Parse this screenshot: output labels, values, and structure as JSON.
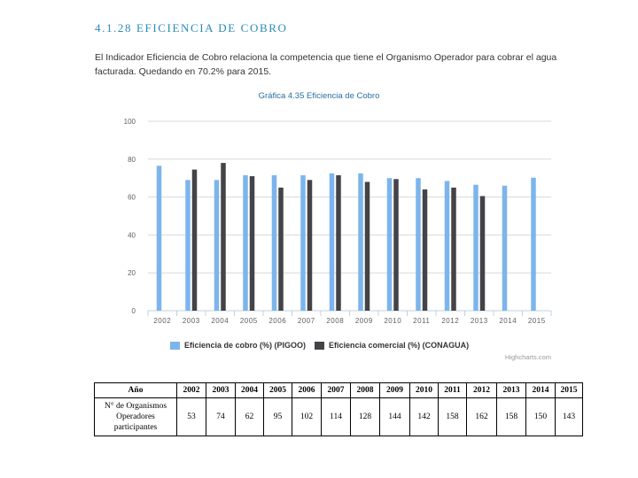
{
  "section": {
    "title": "4.1.28 EFICIENCIA DE COBRO"
  },
  "intro": {
    "text": "El Indicador Eficiencia de Cobro relaciona la competencia que tiene el Organismo Operador para cobrar el agua facturada. Quedando en 70.2% para 2015."
  },
  "chart_title": "Gráfica 4.35 Eficiencia de Cobro",
  "chart_data": {
    "type": "bar",
    "title": "Gráfica 4.35 Eficiencia de Cobro",
    "categories": [
      "2002",
      "2003",
      "2004",
      "2005",
      "2006",
      "2007",
      "2008",
      "2009",
      "2010",
      "2011",
      "2012",
      "2013",
      "2014",
      "2015"
    ],
    "series": [
      {
        "name": "Eficiencia de cobro (%) (PIGOO)",
        "color": "#7cb5ec",
        "values": [
          76.5,
          69,
          69,
          71.5,
          71.5,
          71.5,
          72.5,
          72.5,
          70,
          70,
          68.5,
          66.5,
          66,
          70.2
        ]
      },
      {
        "name": "Eficiencia comercial (%) (CONAGUA)",
        "color": "#434348",
        "values": [
          null,
          74.5,
          78,
          71,
          65,
          69,
          71.5,
          68,
          69.5,
          64,
          65,
          60.5,
          null,
          null
        ]
      }
    ],
    "yticks": [
      0,
      20,
      40,
      60,
      80,
      100
    ],
    "ylim": [
      0,
      100
    ],
    "grid": true,
    "legend": "bottom",
    "credit": "Highcharts.com"
  },
  "table": {
    "header_label": "Año",
    "years": [
      "2002",
      "2003",
      "2004",
      "2005",
      "2006",
      "2007",
      "2008",
      "2009",
      "2010",
      "2011",
      "2012",
      "2013",
      "2014",
      "2015"
    ],
    "row_label": "N° de Organismos Operadores participantes",
    "values": [
      "53",
      "74",
      "62",
      "95",
      "102",
      "114",
      "128",
      "144",
      "142",
      "158",
      "162",
      "158",
      "150",
      "143"
    ]
  }
}
